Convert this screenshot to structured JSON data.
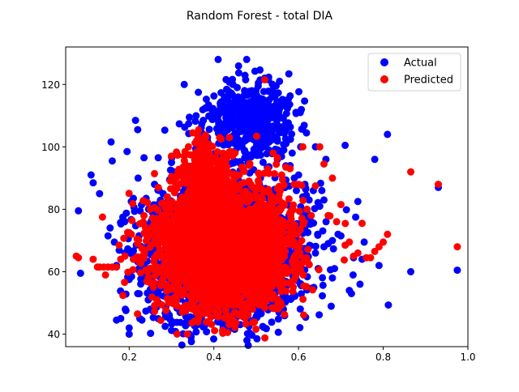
{
  "chart_data": {
    "type": "scatter",
    "title": "Random Forest - total DIA",
    "xlabel": "",
    "ylabel": "",
    "xlim": [
      0.05,
      1.0
    ],
    "ylim": [
      36,
      132
    ],
    "xticks": [
      0.2,
      0.4,
      0.6,
      0.8,
      1.0
    ],
    "xtick_labels": [
      "0.2",
      "0.4",
      "0.6",
      "0.8",
      "1.0"
    ],
    "yticks": [
      40,
      60,
      80,
      100,
      120
    ],
    "ytick_labels": [
      "40",
      "60",
      "80",
      "100",
      "120"
    ],
    "grid": false,
    "legend_position": "top-right",
    "series": [
      {
        "name": "Actual",
        "color": "#0000ff",
        "points": [
          [
            0.08,
            79.5
          ],
          [
            0.085,
            59.5
          ],
          [
            0.11,
            91
          ],
          [
            0.115,
            88.5
          ],
          [
            0.13,
            85
          ],
          [
            0.15,
            71.5
          ],
          [
            0.155,
            74
          ],
          [
            0.16,
            95.5
          ],
          [
            0.165,
            69.5
          ],
          [
            0.17,
            62
          ],
          [
            0.17,
            44.5
          ],
          [
            0.18,
            45
          ],
          [
            0.185,
            77.5
          ],
          [
            0.19,
            66
          ],
          [
            0.195,
            98.5
          ],
          [
            0.2,
            57.5
          ],
          [
            0.2,
            42
          ],
          [
            0.2,
            40
          ],
          [
            0.205,
            82.5
          ],
          [
            0.21,
            83.5
          ],
          [
            0.215,
            108.5
          ],
          [
            0.22,
            105.5
          ],
          [
            0.22,
            53
          ],
          [
            0.225,
            45
          ],
          [
            0.23,
            44.5
          ],
          [
            0.235,
            96.5
          ],
          [
            0.24,
            83.5
          ],
          [
            0.245,
            51
          ],
          [
            0.25,
            48
          ],
          [
            0.255,
            47.5
          ],
          [
            0.26,
            88
          ],
          [
            0.27,
            55.5
          ],
          [
            0.28,
            85
          ],
          [
            0.285,
            42.5
          ],
          [
            0.29,
            47
          ],
          [
            0.3,
            95
          ],
          [
            0.33,
            120
          ],
          [
            0.375,
            108.5
          ],
          [
            0.385,
            103
          ],
          [
            0.395,
            112
          ],
          [
            0.4,
            110
          ],
          [
            0.41,
            128
          ],
          [
            0.415,
            114
          ],
          [
            0.42,
            107
          ],
          [
            0.425,
            116
          ],
          [
            0.43,
            111
          ],
          [
            0.435,
            117.5
          ],
          [
            0.44,
            108
          ],
          [
            0.445,
            120
          ],
          [
            0.45,
            113
          ],
          [
            0.455,
            119
          ],
          [
            0.46,
            105
          ],
          [
            0.465,
            115
          ],
          [
            0.47,
            109
          ],
          [
            0.475,
            121.5
          ],
          [
            0.48,
            112
          ],
          [
            0.485,
            103
          ],
          [
            0.49,
            118
          ],
          [
            0.495,
            106.5
          ],
          [
            0.5,
            110
          ],
          [
            0.505,
            101
          ],
          [
            0.51,
            115.5
          ],
          [
            0.515,
            104
          ],
          [
            0.52,
            122
          ],
          [
            0.525,
            107.5
          ],
          [
            0.53,
            99
          ],
          [
            0.535,
            112.5
          ],
          [
            0.54,
            103.5
          ],
          [
            0.545,
            109
          ],
          [
            0.55,
            96
          ],
          [
            0.555,
            121
          ],
          [
            0.56,
            105
          ],
          [
            0.565,
            99
          ],
          [
            0.57,
            101
          ],
          [
            0.575,
            107
          ],
          [
            0.58,
            94
          ],
          [
            0.585,
            98
          ],
          [
            0.59,
            90
          ],
          [
            0.595,
            86
          ],
          [
            0.6,
            91
          ],
          [
            0.605,
            100
          ],
          [
            0.61,
            84
          ],
          [
            0.615,
            88
          ],
          [
            0.62,
            79
          ],
          [
            0.625,
            83
          ],
          [
            0.63,
            76
          ],
          [
            0.635,
            86
          ],
          [
            0.64,
            100
          ],
          [
            0.645,
            72
          ],
          [
            0.65,
            81
          ],
          [
            0.655,
            86
          ],
          [
            0.66,
            83
          ],
          [
            0.665,
            76
          ],
          [
            0.67,
            69
          ],
          [
            0.68,
            58
          ],
          [
            0.685,
            61
          ],
          [
            0.7,
            71.5
          ],
          [
            0.71,
            100.5
          ],
          [
            0.72,
            54
          ],
          [
            0.725,
            53
          ],
          [
            0.73,
            64.5
          ],
          [
            0.735,
            77.5
          ],
          [
            0.74,
            82.5
          ],
          [
            0.745,
            56
          ],
          [
            0.75,
            64
          ],
          [
            0.755,
            69.5
          ],
          [
            0.78,
            96
          ],
          [
            0.79,
            62
          ],
          [
            0.81,
            104
          ],
          [
            0.865,
            60
          ],
          [
            0.93,
            87
          ],
          [
            0.975,
            60.5
          ],
          [
            0.3,
            60
          ],
          [
            0.32,
            55
          ],
          [
            0.34,
            52
          ],
          [
            0.36,
            50
          ],
          [
            0.38,
            48
          ],
          [
            0.4,
            46
          ],
          [
            0.42,
            48
          ],
          [
            0.44,
            50
          ],
          [
            0.46,
            52
          ],
          [
            0.48,
            48
          ],
          [
            0.5,
            54
          ],
          [
            0.52,
            56
          ],
          [
            0.54,
            52
          ],
          [
            0.56,
            58
          ],
          [
            0.58,
            60
          ],
          [
            0.6,
            62
          ],
          [
            0.62,
            64
          ],
          [
            0.64,
            66
          ],
          [
            0.66,
            68
          ],
          [
            0.68,
            70
          ]
        ]
      },
      {
        "name": "Predicted",
        "color": "#ff0000",
        "points": [
          [
            0.075,
            65
          ],
          [
            0.08,
            64.5
          ],
          [
            0.115,
            64
          ],
          [
            0.125,
            61.5
          ],
          [
            0.13,
            61.5
          ],
          [
            0.14,
            61.5
          ],
          [
            0.15,
            61.5
          ],
          [
            0.16,
            61.5
          ],
          [
            0.17,
            61.5
          ],
          [
            0.18,
            64
          ],
          [
            0.19,
            65
          ],
          [
            0.2,
            72.5
          ],
          [
            0.205,
            72
          ],
          [
            0.21,
            64
          ],
          [
            0.22,
            69
          ],
          [
            0.23,
            67.5
          ],
          [
            0.24,
            72
          ],
          [
            0.25,
            80
          ],
          [
            0.26,
            80.5
          ],
          [
            0.27,
            74
          ],
          [
            0.28,
            82
          ],
          [
            0.29,
            79.5
          ],
          [
            0.3,
            90.5
          ],
          [
            0.31,
            88
          ],
          [
            0.32,
            92.5
          ],
          [
            0.33,
            97
          ],
          [
            0.34,
            100
          ],
          [
            0.35,
            104.5
          ],
          [
            0.36,
            102
          ],
          [
            0.37,
            99.5
          ],
          [
            0.38,
            103
          ],
          [
            0.39,
            98
          ],
          [
            0.4,
            96
          ],
          [
            0.41,
            94
          ],
          [
            0.42,
            90
          ],
          [
            0.43,
            91
          ],
          [
            0.44,
            98.5
          ],
          [
            0.45,
            98
          ],
          [
            0.46,
            91
          ],
          [
            0.47,
            93
          ],
          [
            0.48,
            84
          ],
          [
            0.49,
            80
          ],
          [
            0.5,
            86
          ],
          [
            0.51,
            84
          ],
          [
            0.52,
            121.5
          ],
          [
            0.53,
            91.5
          ],
          [
            0.54,
            98
          ],
          [
            0.55,
            96.5
          ],
          [
            0.56,
            91
          ],
          [
            0.57,
            93.5
          ],
          [
            0.58,
            93
          ],
          [
            0.59,
            88
          ],
          [
            0.6,
            88
          ],
          [
            0.61,
            100
          ],
          [
            0.62,
            80
          ],
          [
            0.63,
            78
          ],
          [
            0.64,
            87.5
          ],
          [
            0.65,
            100
          ],
          [
            0.66,
            94.5
          ],
          [
            0.67,
            78
          ],
          [
            0.68,
            90
          ],
          [
            0.69,
            76
          ],
          [
            0.7,
            81.5
          ],
          [
            0.71,
            68.5
          ],
          [
            0.72,
            69.5
          ],
          [
            0.73,
            65
          ],
          [
            0.74,
            66
          ],
          [
            0.75,
            75.5
          ],
          [
            0.76,
            64.5
          ],
          [
            0.77,
            64.5
          ],
          [
            0.78,
            66.5
          ],
          [
            0.79,
            68
          ],
          [
            0.8,
            69.5
          ],
          [
            0.81,
            72
          ],
          [
            0.865,
            92
          ],
          [
            0.93,
            88
          ],
          [
            0.975,
            68
          ],
          [
            0.43,
            45
          ],
          [
            0.36,
            48
          ],
          [
            0.38,
            50
          ],
          [
            0.4,
            52
          ],
          [
            0.45,
            54
          ],
          [
            0.5,
            56
          ],
          [
            0.55,
            60
          ],
          [
            0.6,
            62
          ]
        ]
      }
    ],
    "clusters": [
      {
        "series": 0,
        "cx": 0.42,
        "cy": 66,
        "sx": 0.085,
        "sy": 10.5,
        "n": 2600,
        "seed": 11
      },
      {
        "series": 0,
        "cx": 0.48,
        "cy": 108,
        "sx": 0.055,
        "sy": 6.5,
        "n": 450,
        "seed": 23
      },
      {
        "series": 1,
        "cx": 0.42,
        "cy": 67,
        "sx": 0.075,
        "sy": 9.2,
        "n": 3200,
        "seed": 37
      },
      {
        "series": 1,
        "cx": 0.38,
        "cy": 88,
        "sx": 0.03,
        "sy": 6.5,
        "n": 450,
        "seed": 41
      }
    ]
  }
}
